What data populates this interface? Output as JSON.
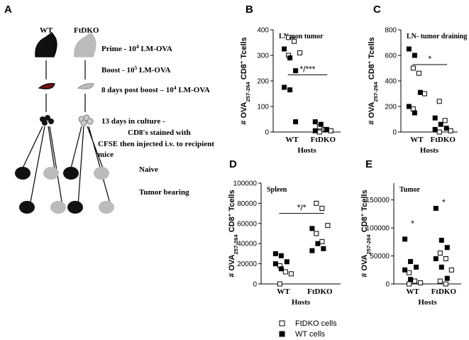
{
  "schematic": {
    "panel": "A",
    "wt": "WT",
    "ftdko": "FtDKO",
    "prime": [
      "Prime - 10",
      "4",
      " LM-OVA"
    ],
    "boost": [
      "Boost - 10",
      "5",
      " LM-OVA"
    ],
    "post": [
      "8 days post boost – 10",
      "4",
      " LM-OVA"
    ],
    "culture1": "13 days in culture -",
    "culture2": "CD8's stained with",
    "culture3": "CFSE then injected i.v. to recipient",
    "culture4": "mice",
    "naive": "Naive",
    "tumor": "Tumor bearing"
  },
  "legend": {
    "series_names": [
      "FtDKO cells",
      "WT cells"
    ]
  },
  "chart_data": [
    {
      "type": "scatter",
      "panel": "B",
      "title": "LN-non tumor",
      "x_label": "Hosts",
      "y_label": [
        "# OVA",
        "257-264",
        " CD8",
        "+",
        " Tcells"
      ],
      "categories": [
        "WT",
        "FtDKO"
      ],
      "ylim": [
        0,
        400
      ],
      "yticks": [
        0,
        100,
        200,
        300,
        400
      ],
      "series": [
        {
          "name": "FtDKO cells",
          "color": "#ffffff",
          "values": [
            [
              370,
              355,
              310,
              300
            ],
            [
              20,
              10,
              5,
              0
            ]
          ]
        },
        {
          "name": "WT cells",
          "color": "#000000",
          "values": [
            [
              325,
              290,
              240,
              175,
              165,
              40
            ],
            [
              40,
              30,
              10,
              5
            ]
          ]
        }
      ],
      "annotations": [
        "**",
        "*/***"
      ]
    },
    {
      "type": "scatter",
      "panel": "C",
      "title": "LN- tumor draining",
      "x_label": "Hosts",
      "y_label": [
        "# OVA",
        "257-264",
        " CD8",
        "+",
        " Tcells"
      ],
      "categories": [
        "WT",
        "FtDKO"
      ],
      "ylim": [
        0,
        800
      ],
      "yticks": [
        0,
        200,
        400,
        600,
        800
      ],
      "series": [
        {
          "name": "FtDKO cells",
          "color": "#ffffff",
          "values": [
            [
              500,
              460,
              300,
              180
            ],
            [
              240,
              90,
              10,
              0
            ]
          ]
        },
        {
          "name": "WT cells",
          "color": "#000000",
          "values": [
            [
              650,
              600,
              310,
              200,
              150
            ],
            [
              110,
              60,
              30,
              20
            ]
          ]
        }
      ],
      "annotations": [
        "*"
      ]
    },
    {
      "type": "scatter",
      "panel": "D",
      "title": "Spleen",
      "x_label": "Hosts",
      "y_label": [
        "# OVA",
        "257-264",
        " CD8",
        "+",
        " Tcells"
      ],
      "categories": [
        "WT",
        "FtDKO"
      ],
      "ylim": [
        0,
        100000
      ],
      "yticks": [
        0,
        20000,
        40000,
        60000,
        80000,
        100000
      ],
      "series": [
        {
          "name": "FtDKO cells",
          "color": "#ffffff",
          "values": [
            [
              18000,
              12000,
              10000,
              0
            ],
            [
              80000,
              75000,
              58000,
              50000,
              42000
            ]
          ]
        },
        {
          "name": "WT cells",
          "color": "#000000",
          "values": [
            [
              30000,
              28000,
              22000,
              20000,
              15000
            ],
            [
              55000,
              40000,
              35000,
              33000
            ]
          ]
        }
      ],
      "annotations": [
        "*/*"
      ]
    },
    {
      "type": "scatter",
      "panel": "E",
      "title": "Tumor",
      "x_label": "Hosts",
      "y_label": [
        "# OVA",
        "257-264",
        " CD8",
        "+",
        " Tcells"
      ],
      "categories": [
        "WT",
        "FtDKO"
      ],
      "ylim": [
        0,
        180000
      ],
      "yticks": [
        0,
        50000,
        100000,
        150000
      ],
      "series": [
        {
          "name": "FtDKO cells",
          "color": "#ffffff",
          "values": [
            [
              20000,
              5000,
              2000,
              0
            ],
            [
              55000,
              45000,
              25000,
              5000,
              0
            ]
          ]
        },
        {
          "name": "WT cells",
          "color": "#000000",
          "values": [
            [
              80000,
              40000,
              30000,
              25000,
              8000
            ],
            [
              135000,
              78000,
              65000,
              45000,
              30000,
              10000
            ]
          ]
        }
      ],
      "annotations": [
        "*",
        "*"
      ]
    }
  ]
}
